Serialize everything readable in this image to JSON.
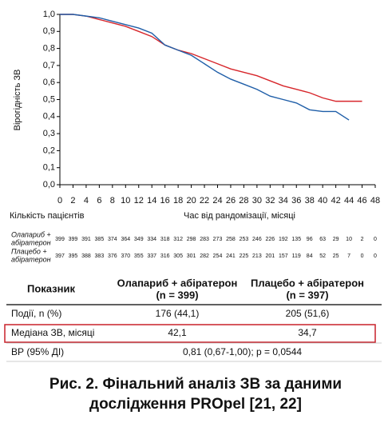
{
  "chart_data": {
    "type": "line",
    "ylabel": "Вірогідність ЗВ",
    "xlabel": "Час від рандомізації, місяці",
    "x": [
      0,
      2,
      4,
      6,
      8,
      10,
      12,
      14,
      16,
      18,
      20,
      22,
      24,
      26,
      28,
      30,
      32,
      34,
      36,
      38,
      40,
      42,
      44,
      46
    ],
    "xlim": [
      0,
      48
    ],
    "ylim": [
      0,
      1
    ],
    "xticks": [
      0,
      2,
      4,
      6,
      8,
      10,
      12,
      14,
      16,
      18,
      20,
      22,
      24,
      26,
      28,
      30,
      32,
      34,
      36,
      38,
      40,
      42,
      44,
      46,
      48
    ],
    "yticks": [
      {
        "value": 0,
        "label": "0,0"
      },
      {
        "value": 0.1,
        "label": "0,1"
      },
      {
        "value": 0.2,
        "label": "0,2"
      },
      {
        "value": 0.3,
        "label": "0,3"
      },
      {
        "value": 0.4,
        "label": "0,4"
      },
      {
        "value": 0.5,
        "label": "0,5"
      },
      {
        "value": 0.6,
        "label": "0,6"
      },
      {
        "value": 0.7,
        "label": "0,7"
      },
      {
        "value": 0.8,
        "label": "0,8"
      },
      {
        "value": 0.9,
        "label": "0,9"
      },
      {
        "value": 1,
        "label": "1,0"
      }
    ],
    "series": [
      {
        "name": "Олапариб + абіратерон",
        "color": "#d7262b",
        "values": [
          1.0,
          1.0,
          0.99,
          0.97,
          0.95,
          0.93,
          0.9,
          0.87,
          0.82,
          0.79,
          0.77,
          0.74,
          0.71,
          0.68,
          0.66,
          0.64,
          0.61,
          0.58,
          0.56,
          0.54,
          0.51,
          0.49,
          0.49,
          0.49
        ]
      },
      {
        "name": "Плацебо + абіратерон",
        "color": "#1f5ea8",
        "values": [
          1.0,
          1.0,
          0.99,
          0.98,
          0.96,
          0.94,
          0.92,
          0.89,
          0.82,
          0.79,
          0.76,
          0.71,
          0.66,
          0.62,
          0.59,
          0.56,
          0.52,
          0.5,
          0.48,
          0.44,
          0.43,
          0.43,
          0.38,
          null
        ]
      }
    ]
  },
  "risk_table": {
    "title": "Кількість пацієнтів",
    "rows": [
      {
        "label": [
          "Олапариб +",
          "абіратерон"
        ],
        "counts": [
          399,
          399,
          391,
          385,
          374,
          364,
          349,
          334,
          318,
          312,
          298,
          283,
          273,
          258,
          253,
          246,
          226,
          192,
          135,
          96,
          63,
          29,
          10,
          2,
          0
        ]
      },
      {
        "label": [
          "Плацебо +",
          "абіратерон"
        ],
        "counts": [
          397,
          395,
          388,
          383,
          376,
          370,
          355,
          337,
          316,
          305,
          301,
          282,
          254,
          241,
          225,
          213,
          201,
          157,
          119,
          84,
          52,
          25,
          7,
          0,
          0
        ]
      }
    ]
  },
  "summary": {
    "header": "Показник",
    "n": [
      "(n = 399)",
      "(n = 397)"
    ],
    "rows": [
      {
        "label": "Події, n (%)",
        "cells": [
          "176 (44,1)",
          "205 (51,6)"
        ]
      },
      {
        "label": "Медіана ЗВ, місяці",
        "cells": [
          "42,1",
          "34,7"
        ],
        "highlight": true
      },
      {
        "label": "ВР (95% ДІ)",
        "cells": [
          "0,81 (0,67-1,00); p = 0,0544"
        ]
      }
    ]
  },
  "caption": [
    "Рис. 2. Фінальний аналіз ЗВ за даними",
    "дослідження PROpel [21, 22]"
  ]
}
